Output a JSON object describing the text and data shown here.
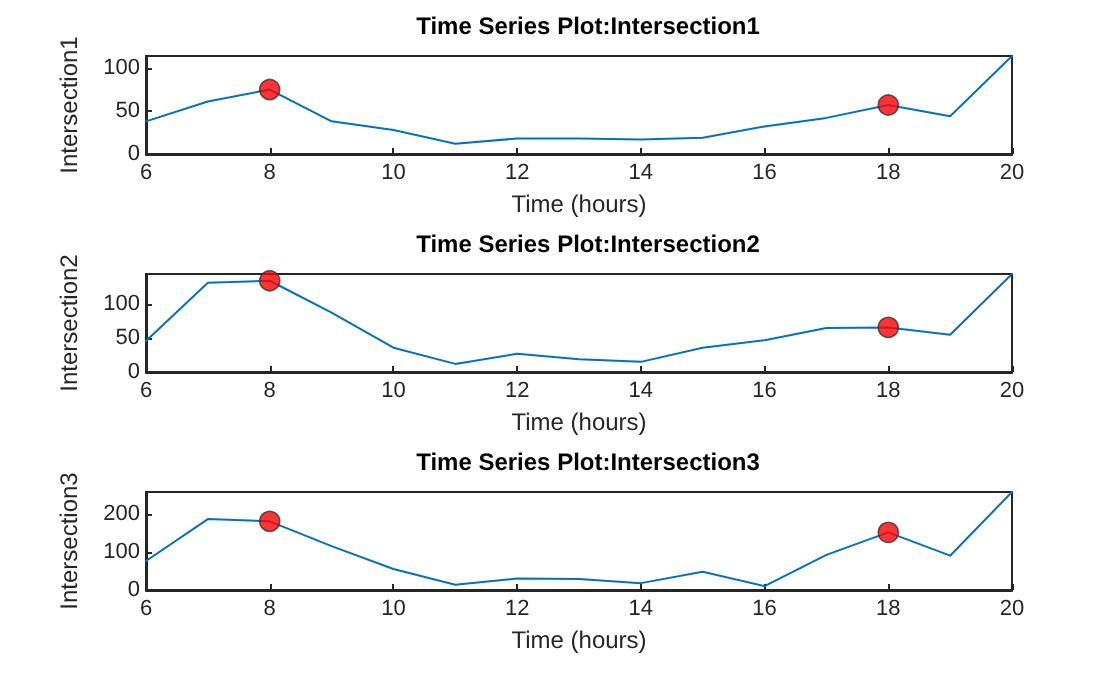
{
  "chart_data": [
    {
      "type": "line",
      "title": "Time Series Plot:Intersection1",
      "xlabel": "Time (hours)",
      "ylabel": "Intersection1",
      "xlim": [
        6,
        20
      ],
      "xticks": [
        6,
        8,
        10,
        12,
        14,
        16,
        18,
        20
      ],
      "ylim": [
        0,
        114
      ],
      "yticks": [
        0,
        50,
        100
      ],
      "series": [
        {
          "marker": "none",
          "color": "#0072bd",
          "x": [
            6,
            7,
            8,
            9,
            10,
            11,
            12,
            13,
            14,
            15,
            16,
            17,
            18,
            19,
            20
          ],
          "values": [
            38,
            61,
            75,
            38,
            28,
            12,
            18,
            18,
            17,
            19,
            32,
            42,
            57,
            44,
            114
          ]
        },
        {
          "type": "scatter",
          "marker": "circle",
          "color": "#ff0000",
          "x": [
            8,
            18
          ],
          "values": [
            75,
            57
          ]
        }
      ]
    },
    {
      "type": "line",
      "title": "Time Series Plot:Intersection2",
      "xlabel": "Time (hours)",
      "ylabel": "Intersection2",
      "xlim": [
        6,
        20
      ],
      "xticks": [
        6,
        8,
        10,
        12,
        14,
        16,
        18,
        20
      ],
      "ylim": [
        0,
        145
      ],
      "yticks": [
        0,
        50,
        100
      ],
      "series": [
        {
          "marker": "none",
          "color": "#0072bd",
          "x": [
            6,
            7,
            8,
            9,
            10,
            11,
            12,
            13,
            14,
            15,
            16,
            17,
            18,
            19,
            20
          ],
          "values": [
            46,
            132,
            135,
            88,
            36,
            12,
            27,
            19,
            15,
            36,
            47,
            65,
            66,
            55,
            145
          ]
        },
        {
          "type": "scatter",
          "marker": "circle",
          "color": "#ff0000",
          "x": [
            8,
            18
          ],
          "values": [
            135,
            66
          ]
        }
      ]
    },
    {
      "type": "line",
      "title": "Time Series Plot:Intersection3",
      "xlabel": "Time (hours)",
      "ylabel": "Intersection3",
      "xlim": [
        6,
        20
      ],
      "xticks": [
        6,
        8,
        10,
        12,
        14,
        16,
        18,
        20
      ],
      "ylim": [
        0,
        257
      ],
      "yticks": [
        0,
        100,
        200
      ],
      "series": [
        {
          "marker": "none",
          "color": "#0072bd",
          "x": [
            6,
            7,
            8,
            9,
            10,
            11,
            12,
            13,
            14,
            15,
            16,
            17,
            18,
            19,
            20
          ],
          "values": [
            76,
            186,
            180,
            115,
            55,
            14,
            30,
            29,
            18,
            48,
            10,
            92,
            151,
            90,
            257
          ]
        },
        {
          "type": "scatter",
          "marker": "circle",
          "color": "#ff0000",
          "x": [
            8,
            18
          ],
          "values": [
            180,
            151
          ]
        }
      ]
    }
  ]
}
